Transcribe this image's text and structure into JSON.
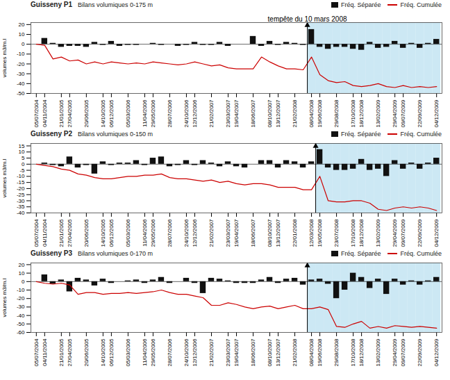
{
  "chart_data": [
    {
      "type": "bar",
      "title": "tempête du 10 mars 2008",
      "annotations": [
        "Guisseny P1",
        "Bilans volumiques 0-175 m"
      ],
      "y_label": "volumes m3/m.l",
      "ylim": [
        -50,
        22
      ],
      "yticks": [
        -50,
        -40,
        -30,
        -20,
        -10,
        0,
        10,
        20
      ],
      "grid": false,
      "legend": "top",
      "highlight": {
        "start_index": 33,
        "color": "#cce8f4"
      },
      "categories": [
        "05/07/2004",
        "04/11/2004",
        null,
        "21/01/2005",
        "27/04/2005",
        null,
        "20/06/2005",
        null,
        "14/10/2005",
        "06/12/2005",
        null,
        "05/03/2006",
        null,
        "11/04/2006",
        "29/05/2006",
        null,
        "28/07/2006",
        null,
        "24/10/2006",
        "12/12/2006",
        null,
        "21/02/2007",
        null,
        "23/03/2007",
        "19/04/2007",
        null,
        "18/06/2007",
        null,
        "08/10/2007",
        "13/12/2007",
        null,
        "21/02/2008",
        null,
        "08/04/2008",
        "19/06/2008",
        null,
        "29/08/2008",
        null,
        "17/10/2008",
        "18/12/2008",
        null,
        "13/02/2009",
        null,
        "29/04/2009",
        "09/07/2009",
        null,
        "22/09/2009",
        null,
        "04/12/2009"
      ],
      "series": [
        {
          "name": "Fréq. Séparée",
          "type": "bar",
          "color": "#111111",
          "values": [
            0,
            6,
            1,
            -3,
            -2,
            -2,
            -3,
            2,
            -1,
            3,
            -2,
            -1,
            -1,
            0,
            1,
            -1,
            0,
            -2,
            -1,
            2,
            -1,
            -1,
            2,
            -2,
            0,
            0,
            8,
            -2,
            3,
            -1,
            2,
            1,
            -1,
            15,
            -3,
            -5,
            -3,
            -3,
            -5,
            -6,
            2,
            -4,
            -3,
            3,
            -4,
            1,
            -4,
            1,
            5
          ]
        },
        {
          "name": "Fréq. Cumulée",
          "type": "line",
          "color": "#cc0000",
          "values": [
            0,
            -1,
            -15,
            -13,
            -17,
            -16,
            -20,
            -18,
            -20,
            -18,
            -19,
            -20,
            -19,
            -20,
            -18,
            -19,
            -20,
            -21,
            -20,
            -18,
            -20,
            -22,
            -21,
            -24,
            -25,
            -25,
            -25,
            -13,
            -18,
            -22,
            -25,
            -25,
            -26,
            -13,
            -31,
            -37,
            -39,
            -38,
            -42,
            -43,
            -42,
            -40,
            -43,
            -44,
            -42,
            -44,
            -43,
            -44,
            -43
          ]
        }
      ]
    },
    {
      "type": "bar",
      "annotations": [
        "Guisseny P2",
        "Bilans volumiques 0-150 m"
      ],
      "y_label": "volumes m3/m.l",
      "ylim": [
        -40,
        17
      ],
      "yticks": [
        -40,
        -35,
        -30,
        -25,
        -20,
        -15,
        -10,
        -5,
        0,
        5,
        10,
        15
      ],
      "grid": false,
      "legend": "top",
      "highlight": {
        "start_index": 34,
        "color": "#cce8f4"
      },
      "categories": [
        "05/07/2004",
        "04/11/2004",
        null,
        "21/01/2005",
        "27/04/2005",
        null,
        "20/06/2005",
        null,
        "14/10/2005",
        "06/12/2005",
        null,
        "05/03/2006",
        null,
        "11/04/2006",
        "29/05/2006",
        null,
        "28/07/2006",
        null,
        "24/10/2006",
        "12/12/2006",
        null,
        "21/02/2007",
        null,
        "23/03/2007",
        "19/04/2007",
        null,
        "18/06/2007",
        null,
        "08/10/2007",
        "13/12/2007",
        null,
        "22/01/2008",
        null,
        "12/03/2008",
        "19/05/2008",
        null,
        "23/07/2008",
        null,
        "17/10/2008",
        "18/12/2008",
        null,
        "13/02/2009",
        null,
        "29/04/2009",
        "09/07/2009",
        null,
        "22/09/2009",
        null,
        "04/12/2009"
      ],
      "series": [
        {
          "name": "Fréq. Séparée",
          "type": "bar",
          "color": "#111111",
          "values": [
            0,
            1,
            -1,
            -2,
            6,
            -3,
            -1,
            -8,
            2,
            -1,
            1,
            1,
            3,
            -1,
            5,
            6,
            -2,
            -1,
            3,
            -1,
            3,
            1,
            -2,
            2,
            -2,
            -3,
            0,
            3,
            3,
            -3,
            3,
            2,
            -3,
            2,
            12,
            -3,
            -5,
            -5,
            -4,
            4,
            -5,
            -4,
            -10,
            3,
            -4,
            1,
            -4,
            1,
            5
          ]
        },
        {
          "name": "Fréq. Cumulée",
          "type": "line",
          "color": "#cc0000",
          "values": [
            0,
            -1,
            -2,
            -4,
            -5,
            -8,
            -9,
            -11,
            -12,
            -12,
            -11,
            -10,
            -10,
            -9,
            -9,
            -8,
            -11,
            -12,
            -12,
            -13,
            -14,
            -13,
            -15,
            -14,
            -16,
            -17,
            -16,
            -16,
            -17,
            -19,
            -19,
            -19,
            -21,
            -21,
            -10,
            -30,
            -31,
            -31,
            -30,
            -30,
            -32,
            -37,
            -38,
            -36,
            -35,
            -36,
            -35,
            -36,
            -38
          ]
        }
      ]
    },
    {
      "type": "bar",
      "annotations": [
        "Guisseny P3",
        "Bilans volumiques 0-170 m"
      ],
      "y_label": "volumes m3/m.l",
      "ylim": [
        -60,
        22
      ],
      "yticks": [
        -60,
        -50,
        -40,
        -30,
        -20,
        -10,
        0,
        10,
        20
      ],
      "grid": false,
      "legend": "top",
      "highlight": {
        "start_index": 33,
        "color": "#cce8f4"
      },
      "categories": [
        "05/07/2004",
        "04/11/2004",
        null,
        "21/01/2005",
        "27/04/2005",
        null,
        "20/06/2005",
        null,
        "14/10/2005",
        "06/12/2005",
        null,
        "05/03/2006",
        null,
        "11/04/2006",
        "29/05/2006",
        null,
        "28/07/2006",
        null,
        "24/10/2006",
        "12/12/2006",
        null,
        "21/02/2007",
        null,
        "23/03/2007",
        "19/04/2007",
        null,
        "18/06/2007",
        null,
        "08/10/2007",
        "13/12/2007",
        null,
        "21/02/2008",
        null,
        "08/04/2008",
        "19/06/2008",
        null,
        "29/08/2008",
        null,
        "17/10/2008",
        "18/12/2008",
        null,
        "13/02/2009",
        null,
        "29/04/2009",
        "09/07/2009",
        null,
        "22/09/2009",
        null,
        "04/12/2009"
      ],
      "series": [
        {
          "name": "Fréq. Séparée",
          "type": "bar",
          "color": "#111111",
          "values": [
            0,
            8,
            -3,
            2,
            -12,
            4,
            2,
            -5,
            3,
            -2,
            0,
            1,
            2,
            -2,
            2,
            5,
            -2,
            0,
            4,
            -2,
            -14,
            4,
            3,
            1,
            -2,
            -2,
            -2,
            2,
            5,
            -2,
            3,
            4,
            -4,
            2,
            3,
            -3,
            -20,
            -10,
            10,
            5,
            -8,
            3,
            -15,
            3,
            -4,
            1,
            -4,
            1,
            5
          ]
        },
        {
          "name": "Fréq. Cumulée",
          "type": "line",
          "color": "#cc0000",
          "values": [
            0,
            -2,
            -3,
            -2,
            -4,
            -15,
            -13,
            -13,
            -15,
            -14,
            -14,
            -13,
            -14,
            -13,
            -12,
            -10,
            -13,
            -15,
            -15,
            -17,
            -19,
            -28,
            -28,
            -25,
            -27,
            -30,
            -32,
            -30,
            -29,
            -32,
            -30,
            -28,
            -32,
            -32,
            -30,
            -33,
            -53,
            -54,
            -50,
            -47,
            -55,
            -53,
            -55,
            -52,
            -53,
            -54,
            -53,
            -54,
            -55
          ]
        }
      ]
    }
  ]
}
